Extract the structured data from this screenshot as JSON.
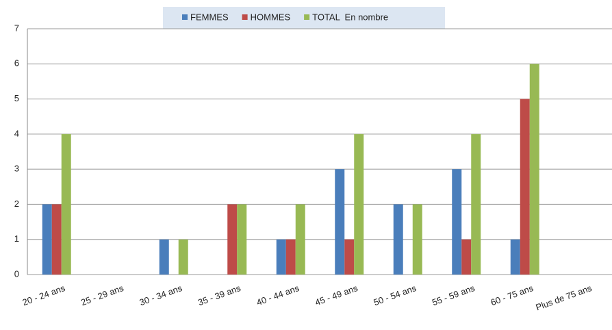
{
  "chart_data": {
    "type": "bar",
    "categories": [
      "20 - 24 ans",
      "25 - 29 ans",
      "30 - 34 ans",
      "35 - 39 ans",
      "40 - 44 ans",
      "45 - 49 ans",
      "50 - 54 ans",
      "55 - 59 ans",
      "60 - 75 ans",
      "Plus de 75 ans"
    ],
    "series": [
      {
        "name": "FEMMES",
        "color": "#4a7ebb",
        "values": [
          2,
          null,
          1,
          null,
          1,
          3,
          2,
          3,
          1,
          null
        ]
      },
      {
        "name": "HOMMES",
        "color": "#be4b48",
        "values": [
          2,
          null,
          null,
          2,
          1,
          1,
          null,
          1,
          5,
          null
        ]
      },
      {
        "name": "TOTAL  En nombre",
        "color": "#98b954",
        "values": [
          4,
          null,
          1,
          2,
          2,
          4,
          2,
          4,
          6,
          null
        ]
      }
    ],
    "ylim": [
      0,
      7
    ],
    "yticks": [
      0,
      1,
      2,
      3,
      4,
      5,
      6,
      7
    ],
    "grid": true,
    "legend": "top"
  }
}
